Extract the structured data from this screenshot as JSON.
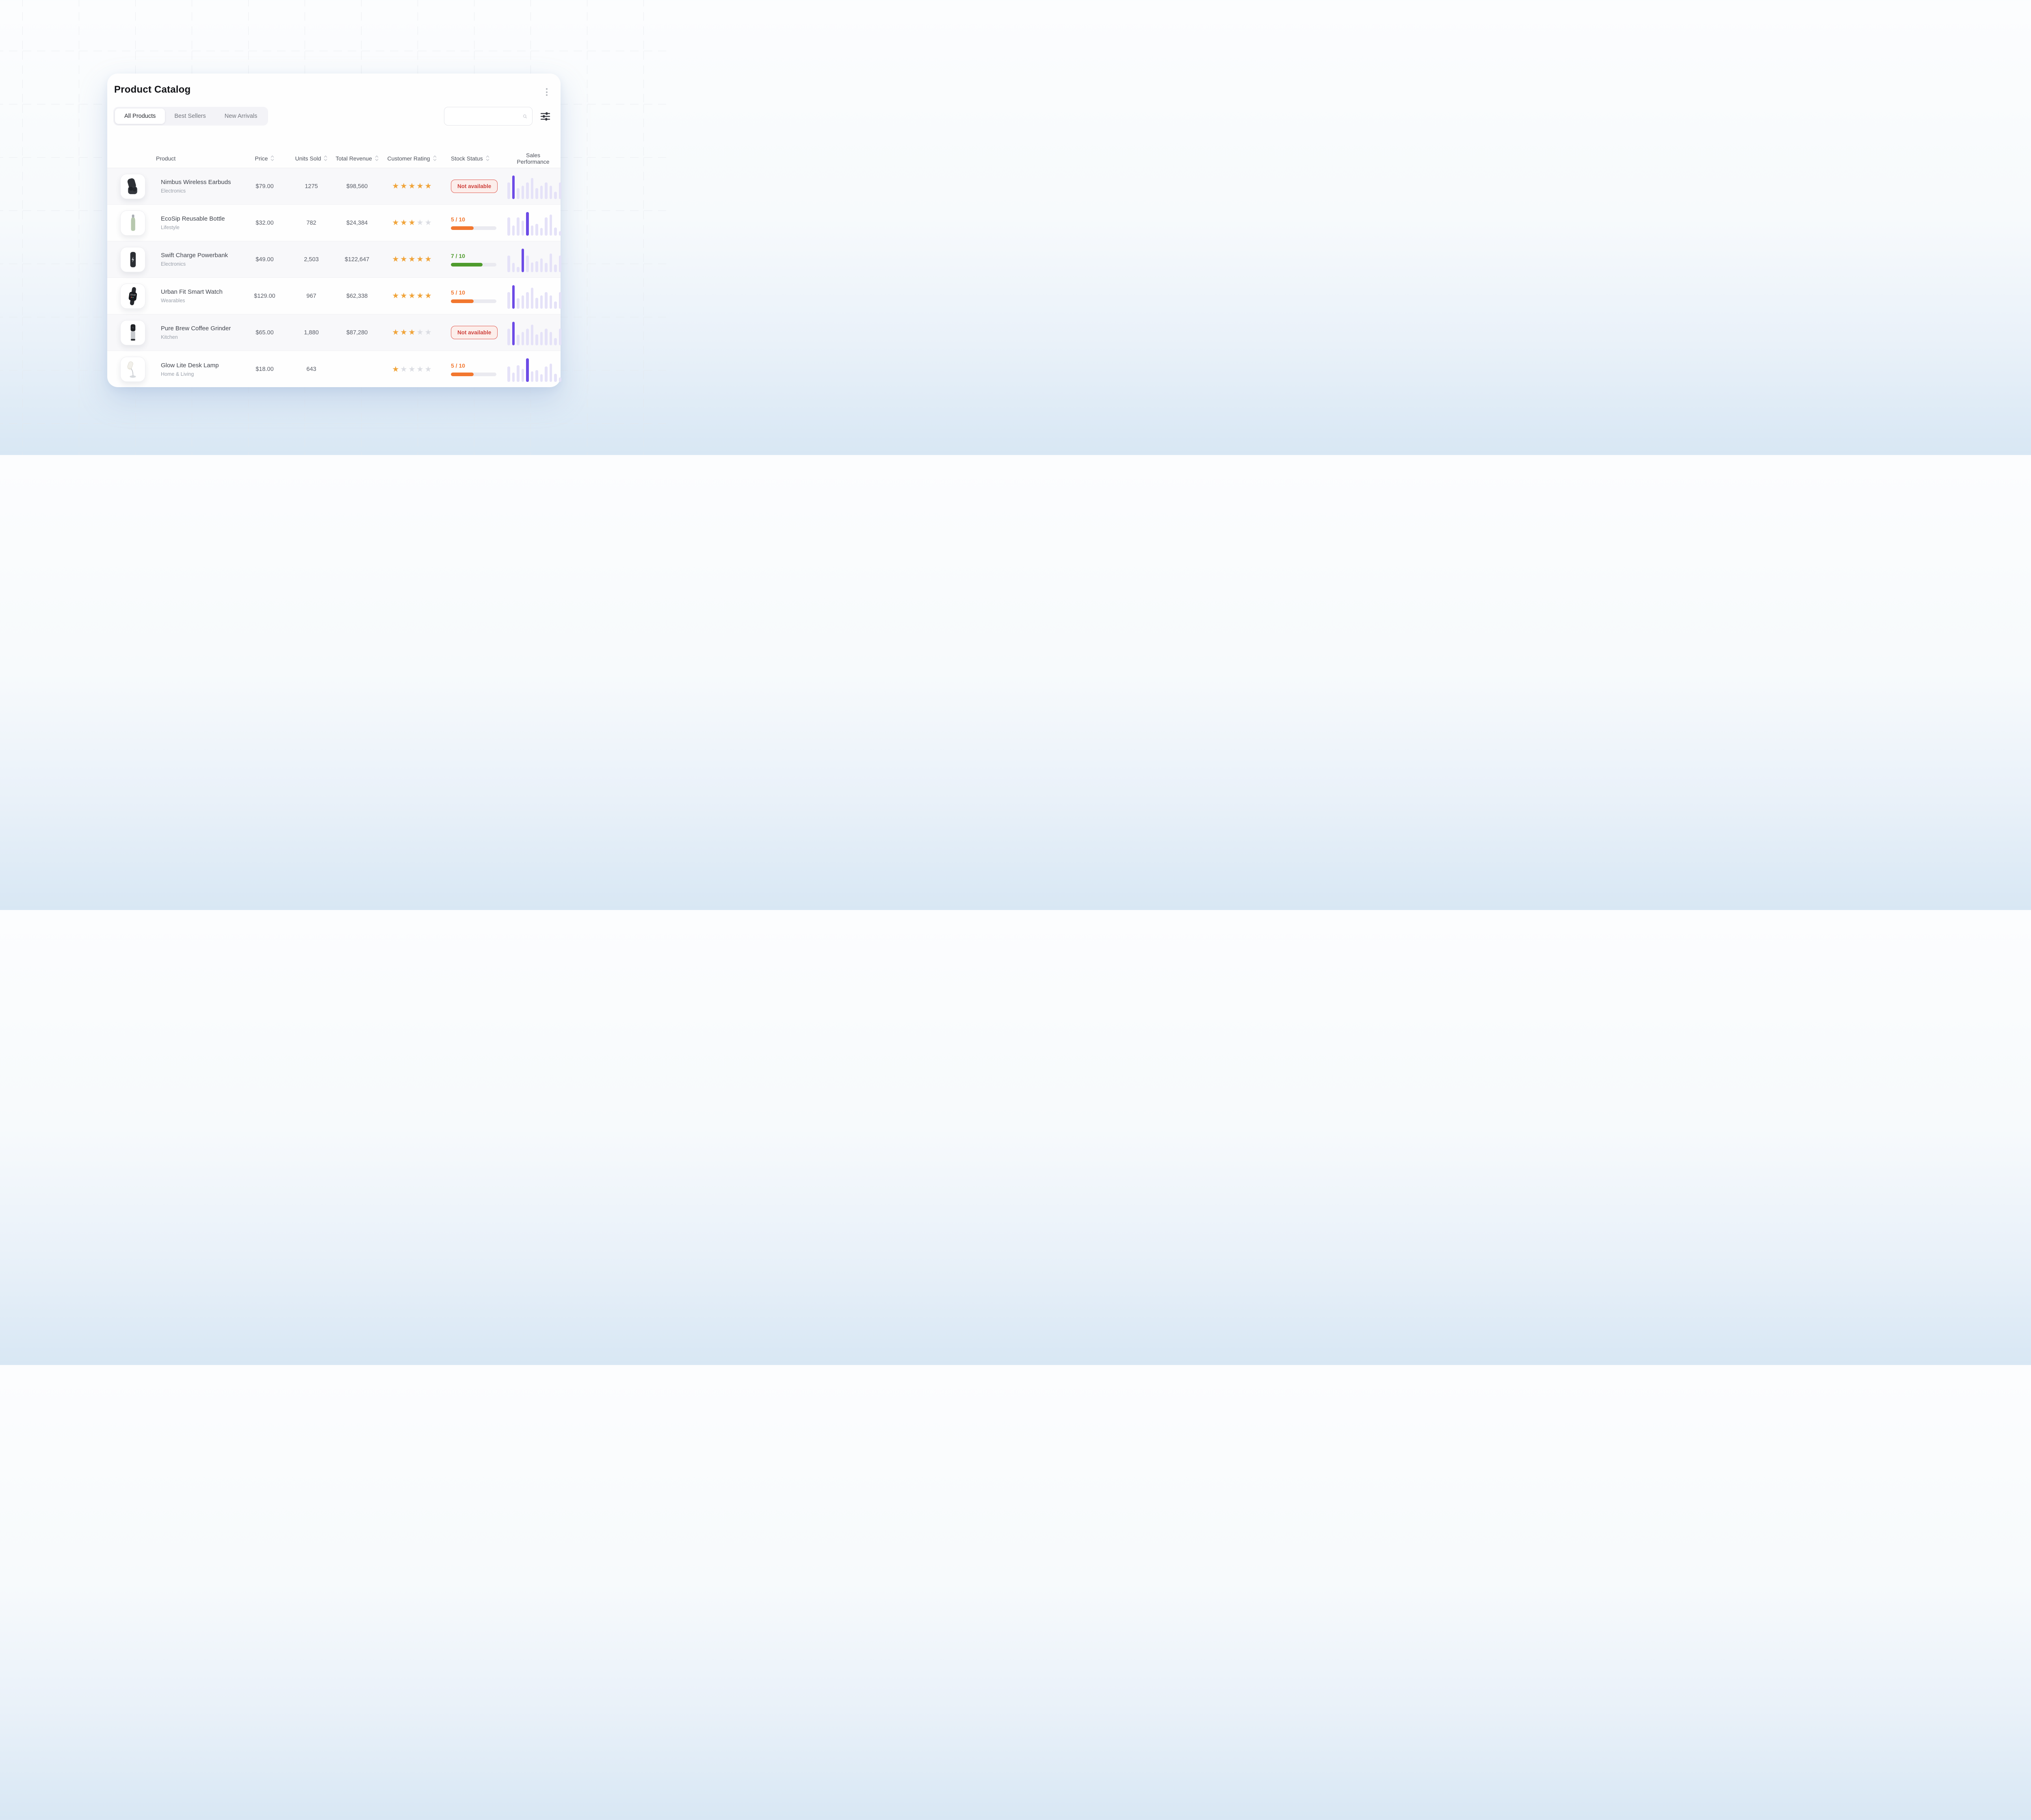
{
  "window": {
    "title": "Product Catalog"
  },
  "icons": {
    "menu": "kebab-vertical-dots",
    "search": "magnifier",
    "filter": "sliders",
    "sort": "chevron-up-down",
    "star": "star"
  },
  "colors": {
    "accent": "#6C4BE6",
    "bar_light": "#E5E2F8",
    "star_filled": "#F0A43A",
    "star_empty": "#DBDDE3",
    "red_text": "#CE423D",
    "red_bg": "#FCEEEB",
    "red_border": "#E05A50",
    "orange": "#F2772F",
    "green": "#4F9B2D",
    "track": "#EAEAF0"
  },
  "tabs": [
    {
      "label": "All Products",
      "active": true
    },
    {
      "label": "Best Sellers",
      "active": false
    },
    {
      "label": "New Arrivals",
      "active": false
    }
  ],
  "search": {
    "value": "",
    "placeholder": ""
  },
  "table": {
    "headers": [
      {
        "label": "Product",
        "sortable": false
      },
      {
        "label": "Price",
        "sortable": true
      },
      {
        "label": "Units Sold",
        "sortable": true
      },
      {
        "label": "Total Revenue",
        "sortable": true
      },
      {
        "label": "Customer Rating",
        "sortable": true
      },
      {
        "label": "Stock Status",
        "sortable": true
      },
      {
        "label": "Sales Performance",
        "sortable": false
      }
    ],
    "rows": [
      {
        "name": "Nimbus Wireless Earbuds",
        "category": "Electronics",
        "price": "$79.00",
        "units_sold": "1275",
        "revenue": "$98,560",
        "rating": 5,
        "rating_max": 5,
        "stock": {
          "type": "badge",
          "label": "Not available"
        },
        "image": "earbuds",
        "chart": {
          "bars": [
            70,
            100,
            46,
            57,
            70,
            90,
            46,
            57,
            70,
            57,
            31,
            70
          ],
          "highlight_index": 1
        }
      },
      {
        "name": "EcoSip Reusable Bottle",
        "category": "Lifestyle",
        "price": "$32.00",
        "units_sold": "782",
        "revenue": "$24,384",
        "rating": 3,
        "rating_max": 5,
        "stock": {
          "type": "progress",
          "label": "5 / 10",
          "value": 5,
          "max": 10,
          "color": "orange"
        },
        "image": "bottle",
        "chart": {
          "bars": [
            78,
            43,
            78,
            64,
            100,
            43,
            50,
            33,
            78,
            89,
            34,
            19
          ],
          "highlight_index": 4
        }
      },
      {
        "name": "Swift Charge Powerbank",
        "category": "Electronics",
        "price": "$49.00",
        "units_sold": "2,503",
        "revenue": "$122,647",
        "rating": 5,
        "rating_max": 5,
        "stock": {
          "type": "progress",
          "label": "7 / 10",
          "value": 7,
          "max": 10,
          "color": "green"
        },
        "image": "powerbank",
        "chart": {
          "bars": [
            70,
            39,
            22,
            100,
            71,
            41,
            46,
            59,
            39,
            79,
            32,
            70
          ],
          "highlight_index": 3
        }
      },
      {
        "name": "Urban Fit Smart Watch",
        "category": "Wearables",
        "price": "$129.00",
        "units_sold": "967",
        "revenue": "$62,338",
        "rating": 5,
        "rating_max": 5,
        "stock": {
          "type": "progress",
          "label": "5 / 10",
          "value": 5,
          "max": 10,
          "color": "orange"
        },
        "image": "watch",
        "watch_screen_time": "10:47",
        "chart": {
          "bars": [
            70,
            100,
            45,
            57,
            70,
            90,
            46,
            57,
            70,
            57,
            31,
            70
          ],
          "highlight_index": 1
        }
      },
      {
        "name": "Pure Brew Coffee Grinder",
        "category": "Kitchen",
        "price": "$65.00",
        "units_sold": "1,880",
        "revenue": "$87,280",
        "rating": 3,
        "rating_max": 5,
        "stock": {
          "type": "badge",
          "label": "Not available"
        },
        "image": "grinder",
        "chart": {
          "bars": [
            70,
            100,
            45,
            57,
            70,
            88,
            46,
            57,
            70,
            57,
            31,
            70
          ],
          "highlight_index": 1
        }
      },
      {
        "name": "Glow Lite Desk Lamp",
        "category": "Home & Living",
        "price": "$18.00",
        "units_sold": "643",
        "revenue": "",
        "rating": 1,
        "rating_max": 5,
        "stock": {
          "type": "progress",
          "label": "5 / 10",
          "value": 5,
          "max": 10,
          "color": "orange"
        },
        "image": "lamp",
        "chart": {
          "bars": [
            65,
            40,
            70,
            55,
            100,
            45,
            50,
            33,
            65,
            78,
            34,
            19
          ],
          "highlight_index": 4
        }
      }
    ]
  }
}
